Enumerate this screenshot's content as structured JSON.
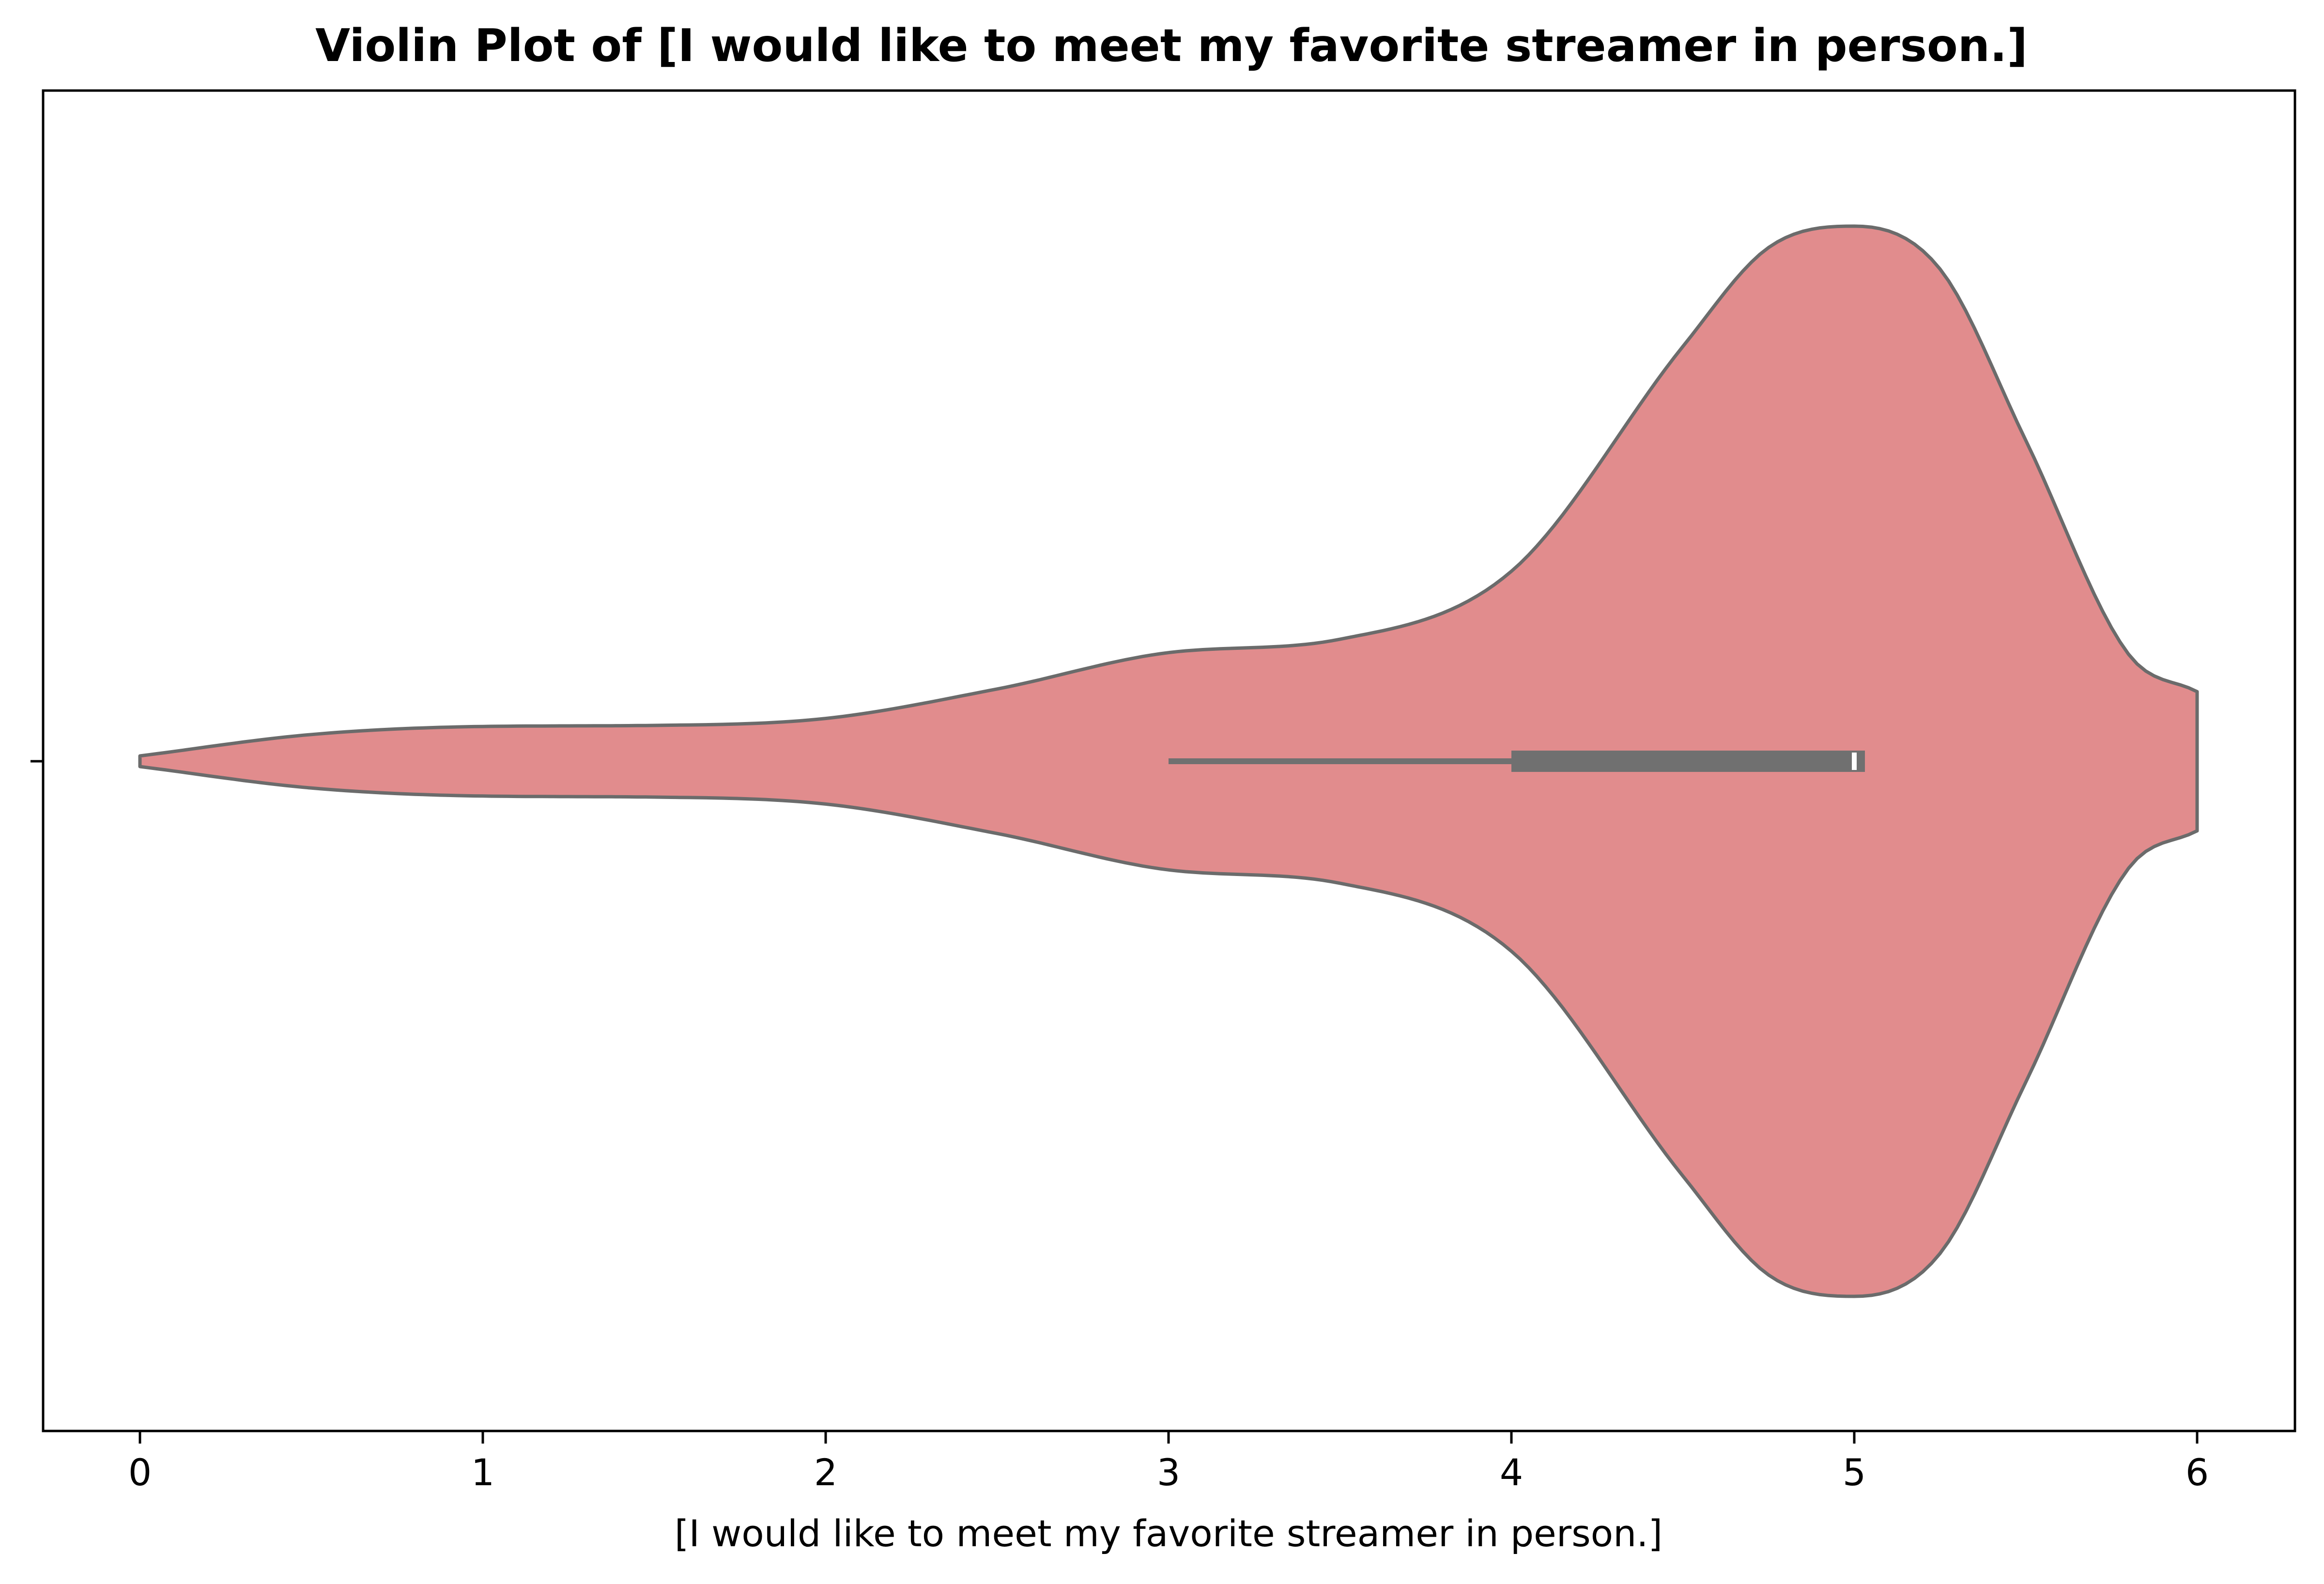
{
  "chart_data": {
    "type": "violin",
    "orientation": "horizontal",
    "title": "Violin Plot of [I would like to meet my favorite streamer in person.]",
    "xlabel": "[I would like to meet my favorite streamer in person.]",
    "ylabel": "",
    "xlim": [
      -0.3,
      6.3
    ],
    "x_ticks": [
      "0",
      "1",
      "2",
      "3",
      "4",
      "5",
      "6"
    ],
    "grid": false,
    "fill_color": "#e18c8d",
    "line_color": "#6b6b6b",
    "box_color": "#707070",
    "median_color": "#ffffff",
    "density_relative": [
      {
        "x": 0.0,
        "w": 0.01
      },
      {
        "x": 0.5,
        "w": 0.05
      },
      {
        "x": 1.0,
        "w": 0.065
      },
      {
        "x": 1.5,
        "w": 0.067
      },
      {
        "x": 2.0,
        "w": 0.08
      },
      {
        "x": 2.5,
        "w": 0.135
      },
      {
        "x": 3.0,
        "w": 0.203
      },
      {
        "x": 3.5,
        "w": 0.228
      },
      {
        "x": 4.0,
        "w": 0.355
      },
      {
        "x": 4.5,
        "w": 0.775
      },
      {
        "x": 4.75,
        "w": 0.96
      },
      {
        "x": 5.0,
        "w": 1.0
      },
      {
        "x": 5.25,
        "w": 0.92
      },
      {
        "x": 5.5,
        "w": 0.6
      },
      {
        "x": 5.8,
        "w": 0.2
      },
      {
        "x": 6.0,
        "w": 0.13
      }
    ],
    "box": {
      "whisker_low": 3,
      "q1": 4,
      "median": 5,
      "q3": 5,
      "whisker_high": 5
    }
  }
}
